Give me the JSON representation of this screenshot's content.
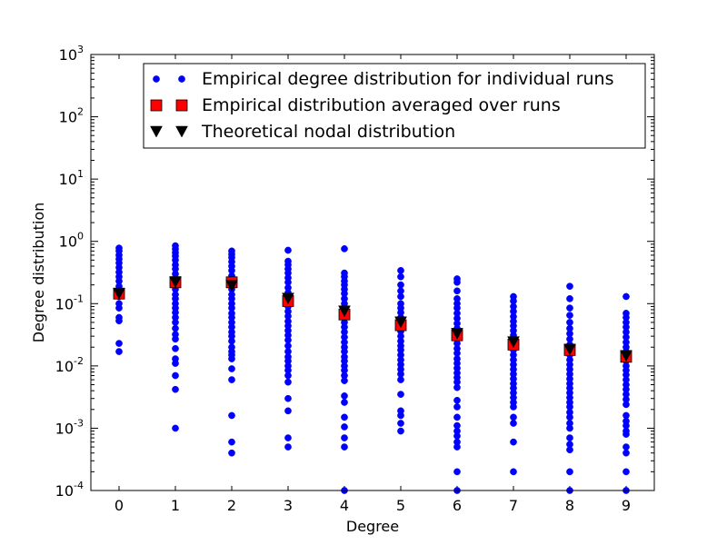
{
  "chart_data": {
    "type": "scatter",
    "title": "",
    "xlabel": "Degree",
    "ylabel": "Degree distribution",
    "xlim": [
      -0.5,
      9.5
    ],
    "ylim": [
      0.0001,
      1000
    ],
    "yscale": "log",
    "x_ticks": [
      0,
      1,
      2,
      3,
      4,
      5,
      6,
      7,
      8,
      9
    ],
    "y_ticks": [
      {
        "value": 0.0001,
        "mantissa": "10",
        "exponent": "-4"
      },
      {
        "value": 0.001,
        "mantissa": "10",
        "exponent": "-3"
      },
      {
        "value": 0.01,
        "mantissa": "10",
        "exponent": "-2"
      },
      {
        "value": 0.1,
        "mantissa": "10",
        "exponent": "-1"
      },
      {
        "value": 1,
        "mantissa": "10",
        "exponent": "0"
      },
      {
        "value": 10,
        "mantissa": "10",
        "exponent": "1"
      },
      {
        "value": 100,
        "mantissa": "10",
        "exponent": "2"
      },
      {
        "value": 1000,
        "mantissa": "10",
        "exponent": "3"
      }
    ],
    "legend_position": "top-right",
    "series": [
      {
        "name": "Empirical degree distribution for individual runs",
        "marker": "circle",
        "color": "#0000ff",
        "points": [
          [
            0,
            0.78
          ],
          [
            0,
            0.7
          ],
          [
            0,
            0.6
          ],
          [
            0,
            0.52
          ],
          [
            0,
            0.45
          ],
          [
            0,
            0.38
          ],
          [
            0,
            0.32
          ],
          [
            0,
            0.27
          ],
          [
            0,
            0.23
          ],
          [
            0,
            0.19
          ],
          [
            0,
            0.16
          ],
          [
            0,
            0.13
          ],
          [
            0,
            0.1
          ],
          [
            0,
            0.085
          ],
          [
            0,
            0.06
          ],
          [
            0,
            0.053
          ],
          [
            0,
            0.023
          ],
          [
            0,
            0.017
          ],
          [
            1,
            0.85
          ],
          [
            1,
            0.75
          ],
          [
            1,
            0.66
          ],
          [
            1,
            0.58
          ],
          [
            1,
            0.5
          ],
          [
            1,
            0.42
          ],
          [
            1,
            0.36
          ],
          [
            1,
            0.3
          ],
          [
            1,
            0.25
          ],
          [
            1,
            0.2
          ],
          [
            1,
            0.17
          ],
          [
            1,
            0.14
          ],
          [
            1,
            0.12
          ],
          [
            1,
            0.1
          ],
          [
            1,
            0.085
          ],
          [
            1,
            0.072
          ],
          [
            1,
            0.06
          ],
          [
            1,
            0.05
          ],
          [
            1,
            0.04
          ],
          [
            1,
            0.032
          ],
          [
            1,
            0.027
          ],
          [
            1,
            0.019
          ],
          [
            1,
            0.013
          ],
          [
            1,
            0.011
          ],
          [
            1,
            0.007
          ],
          [
            1,
            0.0042
          ],
          [
            1,
            0.001
          ],
          [
            2,
            0.7
          ],
          [
            2,
            0.62
          ],
          [
            2,
            0.55
          ],
          [
            2,
            0.47
          ],
          [
            2,
            0.4
          ],
          [
            2,
            0.34
          ],
          [
            2,
            0.28
          ],
          [
            2,
            0.24
          ],
          [
            2,
            0.2
          ],
          [
            2,
            0.17
          ],
          [
            2,
            0.14
          ],
          [
            2,
            0.12
          ],
          [
            2,
            0.1
          ],
          [
            2,
            0.085
          ],
          [
            2,
            0.07
          ],
          [
            2,
            0.06
          ],
          [
            2,
            0.05
          ],
          [
            2,
            0.042
          ],
          [
            2,
            0.035
          ],
          [
            2,
            0.03
          ],
          [
            2,
            0.025
          ],
          [
            2,
            0.02
          ],
          [
            2,
            0.017
          ],
          [
            2,
            0.015
          ],
          [
            2,
            0.013
          ],
          [
            2,
            0.009
          ],
          [
            2,
            0.006
          ],
          [
            2,
            0.0016
          ],
          [
            2,
            0.0006
          ],
          [
            2,
            0.0004
          ],
          [
            3,
            0.72
          ],
          [
            3,
            0.48
          ],
          [
            3,
            0.42
          ],
          [
            3,
            0.36
          ],
          [
            3,
            0.31
          ],
          [
            3,
            0.26
          ],
          [
            3,
            0.22
          ],
          [
            3,
            0.18
          ],
          [
            3,
            0.15
          ],
          [
            3,
            0.125
          ],
          [
            3,
            0.105
          ],
          [
            3,
            0.09
          ],
          [
            3,
            0.075
          ],
          [
            3,
            0.063
          ],
          [
            3,
            0.052
          ],
          [
            3,
            0.044
          ],
          [
            3,
            0.037
          ],
          [
            3,
            0.031
          ],
          [
            3,
            0.026
          ],
          [
            3,
            0.021
          ],
          [
            3,
            0.017
          ],
          [
            3,
            0.014
          ],
          [
            3,
            0.012
          ],
          [
            3,
            0.01
          ],
          [
            3,
            0.0085
          ],
          [
            3,
            0.007
          ],
          [
            3,
            0.0055
          ],
          [
            3,
            0.003
          ],
          [
            3,
            0.0019
          ],
          [
            3,
            0.0007
          ],
          [
            3,
            0.0005
          ],
          [
            4,
            0.76
          ],
          [
            4,
            0.31
          ],
          [
            4,
            0.27
          ],
          [
            4,
            0.23
          ],
          [
            4,
            0.2
          ],
          [
            4,
            0.17
          ],
          [
            4,
            0.145
          ],
          [
            4,
            0.12
          ],
          [
            4,
            0.1
          ],
          [
            4,
            0.085
          ],
          [
            4,
            0.072
          ],
          [
            4,
            0.06
          ],
          [
            4,
            0.05
          ],
          [
            4,
            0.042
          ],
          [
            4,
            0.035
          ],
          [
            4,
            0.029
          ],
          [
            4,
            0.024
          ],
          [
            4,
            0.02
          ],
          [
            4,
            0.017
          ],
          [
            4,
            0.014
          ],
          [
            4,
            0.012
          ],
          [
            4,
            0.01
          ],
          [
            4,
            0.0085
          ],
          [
            4,
            0.007
          ],
          [
            4,
            0.0058
          ],
          [
            4,
            0.0033
          ],
          [
            4,
            0.0026
          ],
          [
            4,
            0.0015
          ],
          [
            4,
            0.00105
          ],
          [
            4,
            0.0007
          ],
          [
            4,
            0.0005
          ],
          [
            4,
            0.0001
          ],
          [
            5,
            0.34
          ],
          [
            5,
            0.27
          ],
          [
            5,
            0.2
          ],
          [
            5,
            0.16
          ],
          [
            5,
            0.13
          ],
          [
            5,
            0.1
          ],
          [
            5,
            0.085
          ],
          [
            5,
            0.072
          ],
          [
            5,
            0.06
          ],
          [
            5,
            0.05
          ],
          [
            5,
            0.042
          ],
          [
            5,
            0.036
          ],
          [
            5,
            0.03
          ],
          [
            5,
            0.025
          ],
          [
            5,
            0.021
          ],
          [
            5,
            0.018
          ],
          [
            5,
            0.015
          ],
          [
            5,
            0.0125
          ],
          [
            5,
            0.0105
          ],
          [
            5,
            0.0088
          ],
          [
            5,
            0.0074
          ],
          [
            5,
            0.006
          ],
          [
            5,
            0.0035
          ],
          [
            5,
            0.0019
          ],
          [
            5,
            0.0016
          ],
          [
            5,
            0.0012
          ],
          [
            5,
            0.0009
          ],
          [
            6,
            0.25
          ],
          [
            6,
            0.22
          ],
          [
            6,
            0.16
          ],
          [
            6,
            0.12
          ],
          [
            6,
            0.1
          ],
          [
            6,
            0.085
          ],
          [
            6,
            0.07
          ],
          [
            6,
            0.058
          ],
          [
            6,
            0.048
          ],
          [
            6,
            0.04
          ],
          [
            6,
            0.034
          ],
          [
            6,
            0.028
          ],
          [
            6,
            0.023
          ],
          [
            6,
            0.019
          ],
          [
            6,
            0.016
          ],
          [
            6,
            0.013
          ],
          [
            6,
            0.011
          ],
          [
            6,
            0.0092
          ],
          [
            6,
            0.0077
          ],
          [
            6,
            0.0065
          ],
          [
            6,
            0.0055
          ],
          [
            6,
            0.0045
          ],
          [
            6,
            0.0028
          ],
          [
            6,
            0.0022
          ],
          [
            6,
            0.0015
          ],
          [
            6,
            0.0011
          ],
          [
            6,
            0.0009
          ],
          [
            6,
            0.00075
          ],
          [
            6,
            0.0006
          ],
          [
            6,
            0.0005
          ],
          [
            6,
            0.0002
          ],
          [
            6,
            0.0001
          ],
          [
            7,
            0.13
          ],
          [
            7,
            0.11
          ],
          [
            7,
            0.09
          ],
          [
            7,
            0.075
          ],
          [
            7,
            0.062
          ],
          [
            7,
            0.052
          ],
          [
            7,
            0.044
          ],
          [
            7,
            0.037
          ],
          [
            7,
            0.031
          ],
          [
            7,
            0.026
          ],
          [
            7,
            0.022
          ],
          [
            7,
            0.018
          ],
          [
            7,
            0.015
          ],
          [
            7,
            0.0125
          ],
          [
            7,
            0.0105
          ],
          [
            7,
            0.0088
          ],
          [
            7,
            0.0074
          ],
          [
            7,
            0.0062
          ],
          [
            7,
            0.0052
          ],
          [
            7,
            0.0044
          ],
          [
            7,
            0.0037
          ],
          [
            7,
            0.0031
          ],
          [
            7,
            0.0026
          ],
          [
            7,
            0.0022
          ],
          [
            7,
            0.0015
          ],
          [
            7,
            0.0012
          ],
          [
            7,
            0.0006
          ],
          [
            7,
            0.0002
          ],
          [
            8,
            0.19
          ],
          [
            8,
            0.12
          ],
          [
            8,
            0.085
          ],
          [
            8,
            0.065
          ],
          [
            8,
            0.05
          ],
          [
            8,
            0.04
          ],
          [
            8,
            0.033
          ],
          [
            8,
            0.027
          ],
          [
            8,
            0.022
          ],
          [
            8,
            0.018
          ],
          [
            8,
            0.015
          ],
          [
            8,
            0.0125
          ],
          [
            8,
            0.0105
          ],
          [
            8,
            0.0088
          ],
          [
            8,
            0.0074
          ],
          [
            8,
            0.0062
          ],
          [
            8,
            0.0052
          ],
          [
            8,
            0.0044
          ],
          [
            8,
            0.0037
          ],
          [
            8,
            0.0031
          ],
          [
            8,
            0.0026
          ],
          [
            8,
            0.0022
          ],
          [
            8,
            0.0018
          ],
          [
            8,
            0.0015
          ],
          [
            8,
            0.0012
          ],
          [
            8,
            0.001
          ],
          [
            8,
            0.0007
          ],
          [
            8,
            0.00055
          ],
          [
            8,
            0.00045
          ],
          [
            8,
            0.0002
          ],
          [
            8,
            0.0001
          ],
          [
            9,
            0.13
          ],
          [
            9,
            0.07
          ],
          [
            9,
            0.06
          ],
          [
            9,
            0.05
          ],
          [
            9,
            0.042
          ],
          [
            9,
            0.035
          ],
          [
            9,
            0.029
          ],
          [
            9,
            0.024
          ],
          [
            9,
            0.02
          ],
          [
            9,
            0.017
          ],
          [
            9,
            0.014
          ],
          [
            9,
            0.012
          ],
          [
            9,
            0.01
          ],
          [
            9,
            0.0085
          ],
          [
            9,
            0.0072
          ],
          [
            9,
            0.006
          ],
          [
            9,
            0.005
          ],
          [
            9,
            0.0042
          ],
          [
            9,
            0.0035
          ],
          [
            9,
            0.0029
          ],
          [
            9,
            0.0024
          ],
          [
            9,
            0.0016
          ],
          [
            9,
            0.0013
          ],
          [
            9,
            0.0011
          ],
          [
            9,
            0.0009
          ],
          [
            9,
            0.0008
          ],
          [
            9,
            0.0005
          ],
          [
            9,
            0.0004
          ],
          [
            9,
            0.0002
          ],
          [
            9,
            0.0001
          ]
        ]
      },
      {
        "name": "Empirical distribution averaged over runs",
        "marker": "square",
        "color": "#ff0000",
        "x": [
          0,
          1,
          2,
          3,
          4,
          5,
          6,
          7,
          8,
          9
        ],
        "values": [
          0.145,
          0.22,
          0.22,
          0.11,
          0.067,
          0.045,
          0.031,
          0.022,
          0.018,
          0.014
        ]
      },
      {
        "name": "Theoretical nodal distribution",
        "marker": "triangle-down",
        "color": "#000000",
        "x": [
          0,
          1,
          2,
          3,
          4,
          5,
          6,
          7,
          8,
          9
        ],
        "values": [
          0.15,
          0.23,
          0.2,
          0.125,
          0.078,
          0.052,
          0.034,
          0.025,
          0.019,
          0.015
        ]
      }
    ]
  }
}
